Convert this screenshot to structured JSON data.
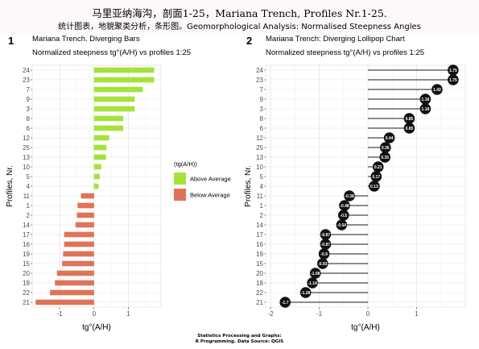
{
  "header": {
    "title": "马里亚纳海沟，剖面1-25，Mariana Trench, Profiles Nr.1-25.",
    "subtitle": "统计图表，地貌聚类分析，条形图。Geomorphological Analysis: Normalised Steepness Angles"
  },
  "footer": {
    "line1": "Statistics Processing and Graphs:",
    "line2": "R Programming. Data Source: QGIS"
  },
  "colors": {
    "above": "#a5e23a",
    "below": "#e07357",
    "dot": "#111111",
    "grid_major": "#e3e3e3",
    "grid_minor": "#f3f3f3"
  },
  "chart_data": [
    {
      "type": "bar",
      "orientation": "horizontal",
      "panel_number": "1",
      "title": "Mariana Trench. Diverging Bars",
      "subtitle": "Normalized steepness tg°(A/H) vs profiles 1:25",
      "xlabel": "tg°(A/H)",
      "ylabel": "Profiles, Nr.",
      "xlim": [
        -1.8,
        1.95
      ],
      "xticks": [
        "-1",
        "0",
        "1"
      ],
      "grid": true,
      "legend": {
        "title": "(tg(A/H))",
        "position": "right",
        "entries": [
          "Above Average",
          "Below Average"
        ]
      },
      "categories": [
        "24",
        "23",
        "7",
        "9",
        "3",
        "8",
        "6",
        "12",
        "25",
        "13",
        "10",
        "5",
        "4",
        "11",
        "1",
        "2",
        "14",
        "17",
        "16",
        "19",
        "15",
        "20",
        "18",
        "22",
        "21"
      ],
      "values": [
        1.75,
        1.75,
        1.42,
        1.18,
        1.18,
        0.85,
        0.85,
        0.44,
        0.36,
        0.35,
        0.21,
        0.17,
        0.13,
        -0.38,
        -0.48,
        -0.5,
        -0.54,
        -0.87,
        -0.87,
        -0.9,
        -0.93,
        -1.08,
        -1.14,
        -1.28,
        -1.7
      ]
    },
    {
      "type": "scatter",
      "style": "lollipop",
      "panel_number": "2",
      "title": "Mariana Trench: Diverging Lollipop Chart",
      "subtitle": "Normalized steepness tg°(A/H) vs profiles 1:25",
      "xlabel": "tg°(A/H)",
      "ylabel": "Profiles, Nr.",
      "xlim": [
        -2.1,
        2.0
      ],
      "xticks": [
        "-2",
        "-1",
        "0",
        "1"
      ],
      "grid": true,
      "categories": [
        "24",
        "23",
        "7",
        "9",
        "3",
        "8",
        "6",
        "12",
        "25",
        "13",
        "10",
        "5",
        "4",
        "11",
        "1",
        "2",
        "14",
        "17",
        "16",
        "19",
        "15",
        "20",
        "18",
        "22",
        "21"
      ],
      "values": [
        1.75,
        1.75,
        1.42,
        1.18,
        1.18,
        0.85,
        0.85,
        0.44,
        0.36,
        0.35,
        0.21,
        0.17,
        0.13,
        -0.38,
        -0.48,
        -0.5,
        -0.54,
        -0.87,
        -0.87,
        -0.9,
        -0.93,
        -1.08,
        -1.14,
        -1.28,
        -1.7
      ],
      "labels": [
        "1.75",
        "1.75",
        "1.42",
        "1.18",
        "1.18",
        "0.85",
        "0.85",
        "0.44",
        "0.36",
        "0.35",
        "0.21",
        "0.17",
        "0.13",
        "-0.38",
        "-0.48",
        "-0.5",
        "-0.54",
        "-0.87",
        "-0.87",
        "-0.9",
        "-0.93",
        "-1.08",
        "-1.14",
        "-1.28",
        "-1.7"
      ]
    }
  ]
}
